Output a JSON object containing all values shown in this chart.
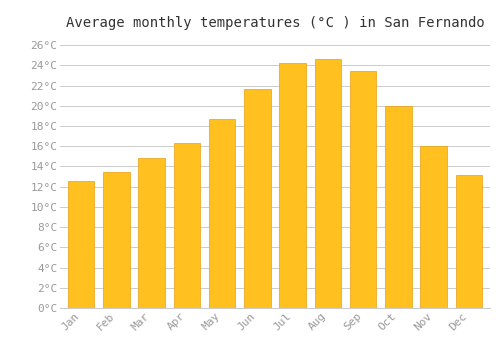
{
  "title": "Average monthly temperatures (°C ) in San Fernando",
  "months": [
    "Jan",
    "Feb",
    "Mar",
    "Apr",
    "May",
    "Jun",
    "Jul",
    "Aug",
    "Sep",
    "Oct",
    "Nov",
    "Dec"
  ],
  "values": [
    12.6,
    13.5,
    14.8,
    16.3,
    18.7,
    21.7,
    24.2,
    24.6,
    23.4,
    20.0,
    16.0,
    13.2
  ],
  "bar_color": "#FFC020",
  "bar_edge_color": "#E8A010",
  "background_color": "#FFFFFF",
  "grid_color": "#CCCCCC",
  "ytick_labels": [
    "0°C",
    "2°C",
    "4°C",
    "6°C",
    "8°C",
    "10°C",
    "12°C",
    "14°C",
    "16°C",
    "18°C",
    "20°C",
    "22°C",
    "24°C",
    "26°C"
  ],
  "ytick_values": [
    0,
    2,
    4,
    6,
    8,
    10,
    12,
    14,
    16,
    18,
    20,
    22,
    24,
    26
  ],
  "ylim": [
    0,
    27
  ],
  "title_fontsize": 10,
  "tick_fontsize": 8,
  "tick_color": "#999999",
  "font_family": "monospace",
  "bar_width": 0.75
}
